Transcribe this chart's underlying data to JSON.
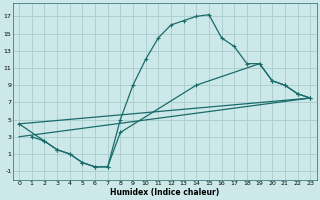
{
  "xlabel": "Humidex (Indice chaleur)",
  "background_color": "#cde8e8",
  "grid_color": "#aacccc",
  "line_color": "#1a6b6b",
  "xlim": [
    -0.5,
    23.5
  ],
  "ylim": [
    -2,
    18.5
  ],
  "xticks": [
    0,
    1,
    2,
    3,
    4,
    5,
    6,
    7,
    8,
    9,
    10,
    11,
    12,
    13,
    14,
    15,
    16,
    17,
    18,
    19,
    20,
    21,
    22,
    23
  ],
  "yticks": [
    -1,
    1,
    3,
    5,
    7,
    9,
    11,
    13,
    15,
    17
  ],
  "line1_x": [
    1,
    2,
    3,
    4,
    5,
    6,
    7,
    8,
    9,
    10,
    11,
    12,
    13,
    14,
    15,
    16,
    17,
    18,
    19,
    20,
    21,
    22,
    23
  ],
  "line1_y": [
    3,
    2.5,
    1.5,
    1,
    0,
    -0.5,
    -0.5,
    5,
    9,
    12,
    14.5,
    16,
    16.5,
    17,
    17.2,
    14.5,
    13.5,
    11.5,
    11.5,
    9.5,
    9,
    8,
    7.5
  ],
  "line2_x": [
    0,
    2,
    3,
    4,
    5,
    6,
    7,
    8,
    14,
    19,
    20,
    21,
    22,
    23
  ],
  "line2_y": [
    4.5,
    2.5,
    1.5,
    1,
    0,
    -0.5,
    -0.5,
    3.5,
    9,
    11.5,
    9.5,
    9,
    8,
    7.5
  ],
  "line3_x": [
    0,
    23
  ],
  "line3_y": [
    3,
    7.5
  ],
  "line4_x": [
    0,
    23
  ],
  "line4_y": [
    4.5,
    7.5
  ],
  "marker": "+"
}
